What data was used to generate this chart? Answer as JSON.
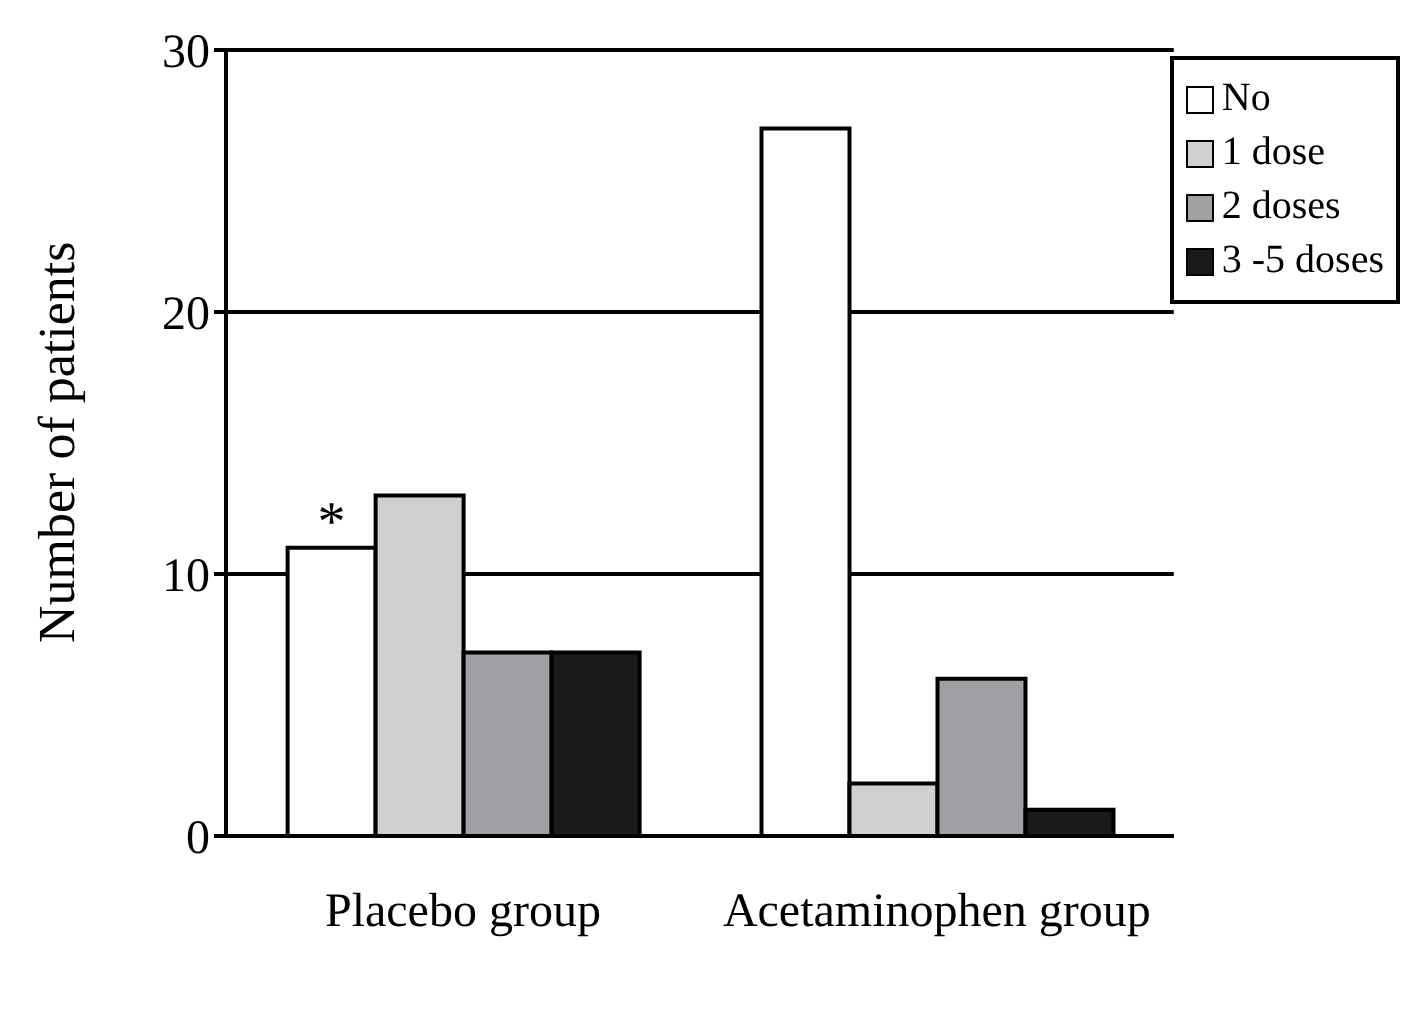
{
  "chart_data": {
    "type": "bar",
    "ylabel": "Number of patients",
    "categories": [
      "Placebo group",
      "Acetaminophen group"
    ],
    "series": [
      {
        "name": "No",
        "color": "#ffffff",
        "values": [
          11,
          27
        ]
      },
      {
        "name": "1 dose",
        "color": "#d0d0d0",
        "values": [
          13,
          2
        ]
      },
      {
        "name": "2 doses",
        "color": "#a0a0a4",
        "values": [
          7,
          6
        ]
      },
      {
        "name": "3 -5 doses",
        "color": "#1a1a1a",
        "values": [
          7,
          1
        ]
      }
    ],
    "ylim": [
      0,
      30
    ],
    "yticks": [
      0,
      10,
      20,
      30
    ],
    "grid": "y",
    "legend": "top right",
    "annotations": [
      {
        "text": "*",
        "x": "Placebo group",
        "y": 11
      }
    ]
  }
}
